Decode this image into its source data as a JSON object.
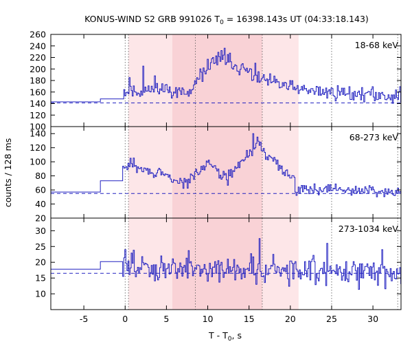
{
  "figure": {
    "title_prefix": "KONUS-WIND S2 GRB 991026 T",
    "title_sub": "0",
    "title_suffix": " = 16398.143s UT (04:33:18.143)",
    "xlabel_prefix": "T - T",
    "xlabel_sub": "0",
    "xlabel_suffix": ", s",
    "ylabel": "counts / 128 ms",
    "colors": {
      "curve": "#2020c0",
      "background": "#2020c0",
      "shade_light": "#fde6e8",
      "shade_dark": "#f9d2d6"
    }
  },
  "chart_data": [
    {
      "type": "line",
      "series": [
        {
          "name": "18-68 keV",
          "values": []
        }
      ],
      "x": [],
      "xlim": [
        -9.0,
        33.4
      ],
      "ylim": [
        100,
        260
      ],
      "yticks": [
        100,
        120,
        140,
        160,
        180,
        200,
        220,
        240,
        260
      ],
      "background_level": 141,
      "pre_trigger": {
        "level1": 143,
        "level2": 148,
        "switch_x": -3.0
      },
      "segments": [
        {
          "x0": -0.3,
          "x1": 5.3,
          "y0": 160,
          "y1": 165
        },
        {
          "x0": 5.3,
          "x1": 7.5,
          "y0": 165,
          "y1": 155
        },
        {
          "x0": 7.5,
          "x1": 8.5,
          "y0": 155,
          "y1": 168
        },
        {
          "x0": 8.5,
          "x1": 10.5,
          "y0": 175,
          "y1": 215
        },
        {
          "x0": 10.5,
          "x1": 13.0,
          "y0": 215,
          "y1": 212
        },
        {
          "x0": 13.0,
          "x1": 16.5,
          "y0": 210,
          "y1": 180
        },
        {
          "x0": 16.5,
          "x1": 21.0,
          "y0": 180,
          "y1": 165
        },
        {
          "x0": 21.0,
          "x1": 33.4,
          "y0": 163,
          "y1": 152
        }
      ],
      "noise": 12,
      "seed": 11,
      "peak_anchors": [
        [
          0.5,
          185
        ],
        [
          2.1,
          205
        ],
        [
          3.5,
          188
        ],
        [
          11.6,
          232
        ],
        [
          12.0,
          236
        ],
        [
          15.7,
          210
        ]
      ]
    },
    {
      "type": "line",
      "series": [
        {
          "name": "68-273 keV",
          "values": []
        }
      ],
      "x": [],
      "xlim": [
        -9.0,
        33.4
      ],
      "ylim": [
        20,
        150
      ],
      "yticks": [
        20,
        40,
        60,
        80,
        100,
        120,
        140
      ],
      "background_level": 55,
      "pre_trigger": {
        "level1": 57,
        "level2": 73,
        "switch_x": -3.0
      },
      "segments": [
        {
          "x0": -0.3,
          "x1": 1.0,
          "y0": 90,
          "y1": 98
        },
        {
          "x0": 1.0,
          "x1": 5.5,
          "y0": 92,
          "y1": 78
        },
        {
          "x0": 5.5,
          "x1": 7.5,
          "y0": 75,
          "y1": 68
        },
        {
          "x0": 7.5,
          "x1": 10.0,
          "y0": 70,
          "y1": 103
        },
        {
          "x0": 10.0,
          "x1": 12.5,
          "y0": 100,
          "y1": 72
        },
        {
          "x0": 12.5,
          "x1": 16.0,
          "y0": 80,
          "y1": 125
        },
        {
          "x0": 16.0,
          "x1": 20.5,
          "y0": 122,
          "y1": 75
        },
        {
          "x0": 20.5,
          "x1": 33.4,
          "y0": 62,
          "y1": 58
        }
      ],
      "noise": 7,
      "seed": 29,
      "peak_anchors": [
        [
          0.6,
          105
        ],
        [
          15.4,
          140
        ],
        [
          15.9,
          135
        ],
        [
          16.3,
          128
        ]
      ]
    },
    {
      "type": "line",
      "series": [
        {
          "name": "273-1034 keV",
          "values": []
        }
      ],
      "x": [],
      "xlim": [
        -9.0,
        33.4
      ],
      "ylim": [
        5,
        34
      ],
      "yticks": [
        10,
        15,
        20,
        25,
        30
      ],
      "background_level": 16.5,
      "pre_trigger": {
        "level1": 17.8,
        "level2": 20.2,
        "switch_x": -3.0
      },
      "segments": [
        {
          "x0": -0.3,
          "x1": 33.4,
          "y0": 18.5,
          "y1": 17.0
        }
      ],
      "noise": 4,
      "seed": 47,
      "peak_anchors": [
        [
          0.0,
          24
        ],
        [
          16.2,
          27.5
        ],
        [
          24.4,
          26
        ],
        [
          31.0,
          24
        ]
      ]
    }
  ],
  "shared_x": {
    "xticks": [
      -5,
      0,
      5,
      10,
      15,
      20,
      25,
      30
    ],
    "bin_width": 0.128,
    "data_start": -0.3,
    "shaded_intervals": [
      {
        "from": 0.4,
        "to": 5.7,
        "tone": "light"
      },
      {
        "from": 5.7,
        "to": 16.6,
        "tone": "dark"
      },
      {
        "from": 16.6,
        "to": 21.0,
        "tone": "light"
      }
    ],
    "dotted_lines": [
      0.0,
      0.4,
      8.5,
      16.6,
      25.0,
      33.0
    ]
  }
}
